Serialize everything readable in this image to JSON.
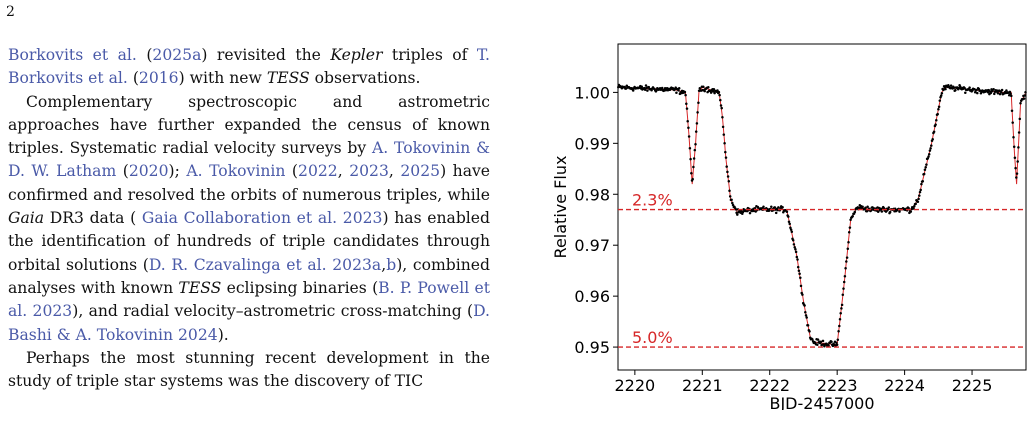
{
  "page_number": "2",
  "paragraphs": [
    [
      {
        "t": "Borkovits et al.",
        "ref": true
      },
      {
        "t": " ("
      },
      {
        "t": "2025a",
        "ref": true
      },
      {
        "t": ") revisited the "
      },
      {
        "t": "Kepler",
        "em": true
      },
      {
        "t": " triples of "
      },
      {
        "t": "T. Borkovits et al.",
        "ref": true
      },
      {
        "t": " ("
      },
      {
        "t": "2016",
        "ref": true
      },
      {
        "t": ") with new "
      },
      {
        "t": "TESS",
        "em": true
      },
      {
        "t": " observations."
      }
    ],
    [
      {
        "t": "Complementary spectroscopic and astrometric approaches have further expanded the census of known triples.  Systematic radial velocity surveys by "
      },
      {
        "t": "A. Tokovinin & D. W. Latham",
        "ref": true
      },
      {
        "t": " ("
      },
      {
        "t": "2020",
        "ref": true
      },
      {
        "t": "); "
      },
      {
        "t": "A. Tokovinin",
        "ref": true
      },
      {
        "t": " ("
      },
      {
        "t": "2022",
        "ref": true
      },
      {
        "t": ", "
      },
      {
        "t": "2023",
        "ref": true
      },
      {
        "t": ", "
      },
      {
        "t": "2025",
        "ref": true
      },
      {
        "t": ") have confirmed and resolved the orbits of numerous triples, while "
      },
      {
        "t": "Gaia",
        "em": true
      },
      {
        "t": " DR3 data ( "
      },
      {
        "t": "Gaia Collaboration et al. 2023",
        "ref": true
      },
      {
        "t": ") has enabled the identification of hundreds of triple candidates through orbital solutions ("
      },
      {
        "t": "D. R. Czavalinga et al. 2023a",
        "ref": true
      },
      {
        "t": ","
      },
      {
        "t": "b",
        "ref": true
      },
      {
        "t": "), combined analyses with known "
      },
      {
        "t": "TESS",
        "em": true
      },
      {
        "t": " eclipsing binaries ("
      },
      {
        "t": "B. P. Powell et al. 2023",
        "ref": true
      },
      {
        "t": "), and radial velocity–astrometric cross-matching ("
      },
      {
        "t": "D. Bashi & A. Tokovinin 2024",
        "ref": true
      },
      {
        "t": ")."
      }
    ],
    [
      {
        "t": "Perhaps the most stunning recent development in the study of triple star systems was the discovery of TIC"
      }
    ]
  ],
  "chart_data": {
    "type": "scatter",
    "xlabel": "BJD-2457000",
    "ylabel": "Relative Flux",
    "xlim": [
      2219.75,
      2225.8
    ],
    "ylim": [
      0.9455,
      1.0095
    ],
    "x_ticks": [
      2220,
      2221,
      2222,
      2223,
      2224,
      2225
    ],
    "x_tick_labels": [
      "2220",
      "2221",
      "2222",
      "2223",
      "2224",
      "2225"
    ],
    "y_ticks": [
      0.95,
      0.96,
      0.97,
      0.98,
      0.99,
      1.0
    ],
    "y_tick_labels": [
      "0.95",
      "0.96",
      "0.97",
      "0.98",
      "0.99",
      "1.00"
    ],
    "grid": false,
    "point_color": "#000000",
    "model_color": "#d62728",
    "reference_lines": [
      {
        "y": 0.977,
        "label": "2.3%",
        "color": "#d62728",
        "style": "dashed"
      },
      {
        "y": 0.95,
        "label": "5.0%",
        "color": "#d62728",
        "style": "dashed"
      }
    ],
    "light_curve_profile": {
      "x": [
        2219.75,
        2220.6,
        2220.75,
        2220.8,
        2220.85,
        2220.9,
        2220.95,
        2221.0,
        2221.25,
        2221.3,
        2221.35,
        2221.42,
        2221.5,
        2221.52,
        2221.8,
        2221.9,
        2222.25,
        2222.4,
        2222.5,
        2222.6,
        2222.65,
        2222.95,
        2223.0,
        2223.1,
        2223.2,
        2223.3,
        2223.5,
        2224.1,
        2224.2,
        2224.4,
        2224.55,
        2224.6,
        2225.45,
        2225.58,
        2225.62,
        2225.66,
        2225.72,
        2225.8
      ],
      "y": [
        1.001,
        1.0005,
        1.0,
        0.992,
        0.982,
        0.99,
        1.0,
        1.001,
        1.0,
        0.995,
        0.987,
        0.979,
        0.977,
        0.9765,
        0.977,
        0.977,
        0.977,
        0.968,
        0.959,
        0.952,
        0.951,
        0.9505,
        0.9505,
        0.962,
        0.975,
        0.9775,
        0.977,
        0.977,
        0.979,
        0.99,
        1.0,
        1.001,
        1.0,
        1.0,
        0.99,
        0.982,
        0.998,
        1.0
      ]
    },
    "noise_amplitude": 0.0006
  }
}
